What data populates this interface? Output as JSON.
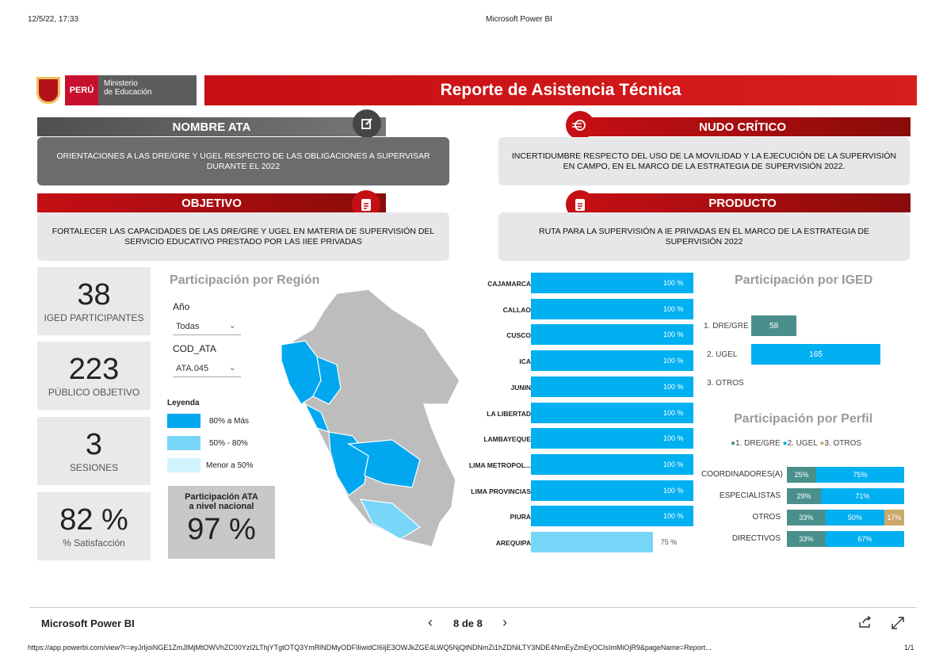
{
  "print_header": {
    "date": "12/5/22, 17:33",
    "title": "Microsoft Power BI"
  },
  "banner": {
    "peru": "PERÚ",
    "ministry_line1": "Ministerio",
    "ministry_line2": "de Educación",
    "title": "Reporte de Asistencia Técnica"
  },
  "sections": {
    "nombre_ata": {
      "title": "NOMBRE ATA",
      "text": "ORIENTACIONES A LAS DRE/GRE Y UGEL RESPECTO DE LAS OBLIGACIONES A SUPERVISAR DURANTE EL 2022",
      "icon": "edit-icon"
    },
    "nudo_critico": {
      "title": "NUDO CRÍTICO",
      "text": "INCERTIDUMBRE RESPECTO DEL USO DE LA MOVILIDAD Y LA EJECUCIÓN DE LA SUPERVISIÓN EN CAMPO, EN EL MARCO DE LA ESTRATEGIA DE SUPERVISIÓN 2022.",
      "icon": "target-icon"
    },
    "objetivo": {
      "title": "OBJETIVO",
      "text": "FORTALECER LAS CAPACIDADES DE LAS DRE/GRE Y UGEL EN MATERIA DE SUPERVISIÓN DEL SERVICIO EDUCATIVO PRESTADO POR LAS IIEE PRIVADAS",
      "icon": "document-icon"
    },
    "producto": {
      "title": "PRODUCTO",
      "text": "RUTA PARA LA SUPERVISIÓN A IE PRIVADAS EN EL MARCO DE LA ESTRATEGIA DE SUPERVISIÓN 2022",
      "icon": "document-icon"
    }
  },
  "kpis": [
    {
      "value": "38",
      "label": "IGED PARTICIPANTES"
    },
    {
      "value": "223",
      "label": "PÚBLICO OBJETIVO"
    },
    {
      "value": "3",
      "label": "SESIONES"
    },
    {
      "value": "82 %",
      "label": "% Satisfacción"
    }
  ],
  "region_panel": {
    "title": "Participación por Región",
    "slicer_year_label": "Año",
    "slicer_year_value": "Todas",
    "slicer_code_label": "COD_ATA",
    "slicer_code_value": "ATA.045",
    "legend_title": "Leyenda",
    "legend": [
      {
        "label": "80% a Más",
        "color": "#01a8f0"
      },
      {
        "label": "50% - 80%",
        "color": "#78d6f8"
      },
      {
        "label": "Menor a 50%",
        "color": "#d2f5fd"
      }
    ],
    "ata_national_label_1": "Participación ATA",
    "ata_national_label_2": "a nivel nacional",
    "ata_national_value": "97 %"
  },
  "region_bars": [
    {
      "label": "CAJAMARCA",
      "value": 100,
      "text": "100 %"
    },
    {
      "label": "CALLAO",
      "value": 100,
      "text": "100 %"
    },
    {
      "label": "CUSCO",
      "value": 100,
      "text": "100 %"
    },
    {
      "label": "ICA",
      "value": 100,
      "text": "100 %"
    },
    {
      "label": "JUNIN",
      "value": 100,
      "text": "100 %"
    },
    {
      "label": "LA LIBERTAD",
      "value": 100,
      "text": "100 %"
    },
    {
      "label": "LAMBAYEQUE",
      "value": 100,
      "text": "100 %"
    },
    {
      "label": "LIMA METROPOL...",
      "value": 100,
      "text": "100 %"
    },
    {
      "label": "LIMA PROVINCIAS",
      "value": 100,
      "text": "100 %"
    },
    {
      "label": "PIURA",
      "value": 100,
      "text": "100 %"
    },
    {
      "label": "AREQUIPA",
      "value": 75,
      "text": "75 %"
    }
  ],
  "iged_panel": {
    "title": "Participación por IGED",
    "rows": [
      {
        "label": "1. DRE/GRE",
        "value": 58,
        "text": "58",
        "color": "#4a8f8c"
      },
      {
        "label": "2. UGEL",
        "value": 165,
        "text": "165",
        "color": "#01b0f1"
      },
      {
        "label": "3. OTROS",
        "value": 0,
        "text": "",
        "color": "#c9a96b"
      }
    ]
  },
  "perfil_panel": {
    "title": "Participación por Perfil",
    "legend": [
      {
        "label": "1. DRE/GRE",
        "color": "#4a8f8c"
      },
      {
        "label": "2. UGEL",
        "color": "#01b0f1"
      },
      {
        "label": "3. OTROS",
        "color": "#c9a96b"
      }
    ],
    "rows": [
      {
        "label": "COORDINADORES(A)",
        "segments": [
          {
            "value": 25,
            "text": "25%"
          },
          {
            "value": 75,
            "text": "75%"
          },
          {
            "value": 0,
            "text": ""
          }
        ]
      },
      {
        "label": "ESPECIALISTAS",
        "segments": [
          {
            "value": 29,
            "text": "29%"
          },
          {
            "value": 71,
            "text": "71%"
          },
          {
            "value": 0,
            "text": ""
          }
        ]
      },
      {
        "label": "OTROS",
        "segments": [
          {
            "value": 33,
            "text": "33%"
          },
          {
            "value": 50,
            "text": "50%"
          },
          {
            "value": 17,
            "text": "17%"
          }
        ]
      },
      {
        "label": "DIRECTIVOS",
        "segments": [
          {
            "value": 33,
            "text": "33%"
          },
          {
            "value": 67,
            "text": "67%"
          },
          {
            "value": 0,
            "text": ""
          }
        ]
      }
    ]
  },
  "footer": {
    "brand": "Microsoft Power BI",
    "page": "8 de 8",
    "url": "https://app.powerbi.com/view?r=eyJrIjoiNGE1ZmJlMjMtOWVhZC00YzI2LThjYTgtOTQ3YmRlNDMyODFlIiwidCI6IjE3OWJkZGE4LWQ5NjQtNDNmZi1hZDNiLTY3NDE4NmEyZmEyOCIsImMiOjR9&pageName=Report...",
    "print_page": "1/1"
  },
  "colors": {
    "brand_red": "#c50f14",
    "accent_blue": "#01a8f0",
    "teal": "#4a8f8c",
    "gold": "#c9a96b"
  }
}
